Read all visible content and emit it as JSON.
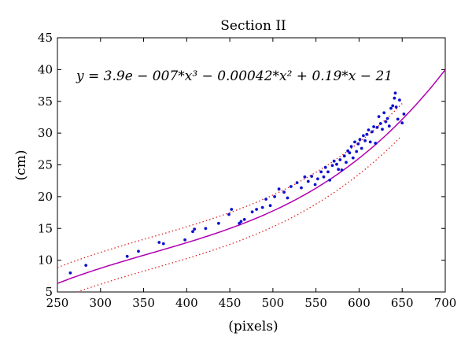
{
  "chart_data": {
    "type": "scatter",
    "title": "Section II",
    "xlabel": "(pixels)",
    "ylabel": "(cm)",
    "xlim": [
      250,
      700
    ],
    "ylim": [
      5,
      45
    ],
    "xticks": [
      250,
      300,
      350,
      400,
      450,
      500,
      550,
      600,
      650,
      700
    ],
    "yticks": [
      5,
      10,
      15,
      20,
      25,
      30,
      35,
      40,
      45
    ],
    "grid": false,
    "annotation": "y = 3.9e − 007*x³ − 0.00042*x² + 0.19*x − 21",
    "fit": {
      "coefficients": [
        3.9e-07,
        -0.00042,
        0.19,
        -21
      ],
      "band": 2.5
    },
    "colors": {
      "points": "#1010d0",
      "fit": "#b000b0",
      "band": "#e02020"
    },
    "points": [
      [
        265,
        8
      ],
      [
        283,
        9.2
      ],
      [
        331,
        10.6
      ],
      [
        344,
        11.4
      ],
      [
        368,
        12.8
      ],
      [
        373,
        12.6
      ],
      [
        398,
        13.2
      ],
      [
        407,
        14.5
      ],
      [
        409,
        14.9
      ],
      [
        422,
        15.0
      ],
      [
        437,
        15.8
      ],
      [
        449,
        17.2
      ],
      [
        452,
        18.0
      ],
      [
        461,
        15.8
      ],
      [
        463,
        16.1
      ],
      [
        467,
        16.4
      ],
      [
        476,
        17.6
      ],
      [
        481,
        18.0
      ],
      [
        488,
        18.3
      ],
      [
        492,
        19.6
      ],
      [
        497,
        18.6
      ],
      [
        502,
        20.0
      ],
      [
        507,
        21.2
      ],
      [
        513,
        20.7
      ],
      [
        517,
        19.8
      ],
      [
        521,
        21.6
      ],
      [
        528,
        22.2
      ],
      [
        533,
        21.4
      ],
      [
        537,
        23.1
      ],
      [
        541,
        22.4
      ],
      [
        545,
        23.2
      ],
      [
        549,
        21.9
      ],
      [
        552,
        22.8
      ],
      [
        556,
        23.9
      ],
      [
        559,
        23.1
      ],
      [
        561,
        24.6
      ],
      [
        564,
        23.9
      ],
      [
        566,
        22.6
      ],
      [
        569,
        24.9
      ],
      [
        571,
        25.6
      ],
      [
        574,
        25.1
      ],
      [
        576,
        24.3
      ],
      [
        578,
        25.8
      ],
      [
        580,
        24.2
      ],
      [
        583,
        26.4
      ],
      [
        585,
        25.4
      ],
      [
        587,
        27.2
      ],
      [
        589,
        26.9
      ],
      [
        591,
        27.9
      ],
      [
        593,
        26.1
      ],
      [
        595,
        28.6
      ],
      [
        597,
        27.1
      ],
      [
        599,
        28.3
      ],
      [
        601,
        29.0
      ],
      [
        603,
        27.6
      ],
      [
        605,
        29.6
      ],
      [
        607,
        28.8
      ],
      [
        609,
        29.8
      ],
      [
        611,
        30.5
      ],
      [
        613,
        28.6
      ],
      [
        615,
        30.2
      ],
      [
        617,
        31.0
      ],
      [
        619,
        28.4
      ],
      [
        621,
        30.9
      ],
      [
        623,
        32.6
      ],
      [
        625,
        31.5
      ],
      [
        627,
        30.6
      ],
      [
        629,
        33.2
      ],
      [
        631,
        31.8
      ],
      [
        633,
        32.3
      ],
      [
        635,
        31.1
      ],
      [
        637,
        33.9
      ],
      [
        639,
        34.3
      ],
      [
        641,
        35.5
      ],
      [
        642,
        36.3
      ],
      [
        643,
        34.1
      ],
      [
        645,
        32.2
      ],
      [
        647,
        35.2
      ],
      [
        650,
        31.6
      ],
      [
        652,
        33.0
      ]
    ]
  }
}
